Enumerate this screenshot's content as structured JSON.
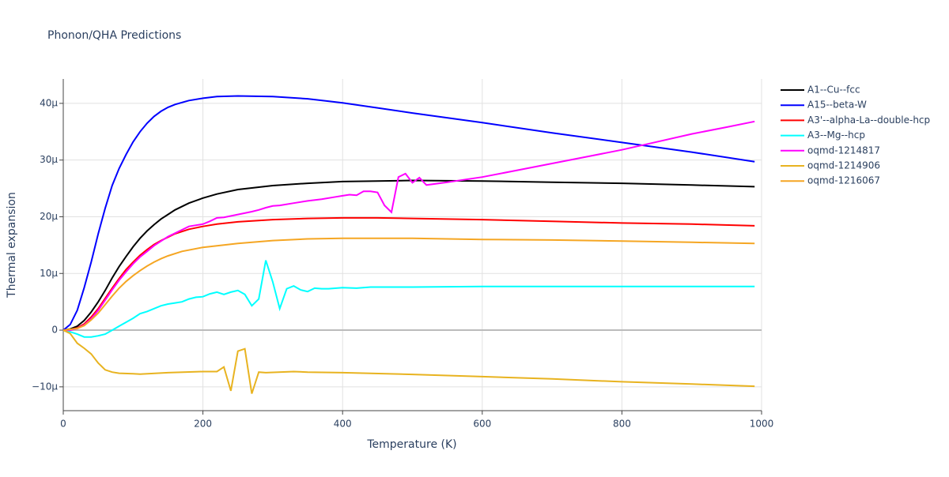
{
  "chart_data": {
    "type": "line",
    "title": "Phonon/QHA Predictions",
    "x_label": "Temperature (K)",
    "y_label": "Thermal expansion",
    "xlim": [
      0,
      1000
    ],
    "xticks": [
      0,
      200,
      400,
      600,
      800,
      1000
    ],
    "ylim": [
      -14.2,
      44.3
    ],
    "yticks": [
      {
        "value": -10,
        "label": "−10μ"
      },
      0,
      {
        "value": 10,
        "label": "10μ"
      },
      {
        "value": 20,
        "label": "20μ"
      },
      {
        "value": 30,
        "label": "30μ"
      },
      {
        "value": 40,
        "label": "40μ"
      }
    ],
    "grid": true,
    "legend": "right",
    "series": [
      {
        "name": "A1--Cu--fcc",
        "color": "#000000",
        "x": [
          0,
          10,
          20,
          30,
          40,
          50,
          60,
          70,
          80,
          90,
          100,
          110,
          120,
          130,
          140,
          150,
          160,
          180,
          200,
          220,
          250,
          300,
          350,
          400,
          450,
          500,
          600,
          700,
          800,
          900,
          990
        ],
        "values": [
          0,
          0.2,
          0.7,
          1.7,
          3.2,
          5,
          7,
          9.2,
          11.2,
          13,
          14.7,
          16.2,
          17.5,
          18.6,
          19.6,
          20.4,
          21.2,
          22.4,
          23.3,
          24,
          24.8,
          25.5,
          25.9,
          26.2,
          26.3,
          26.4,
          26.3,
          26.1,
          25.9,
          25.6,
          25.3
        ]
      },
      {
        "name": "A15--beta-W",
        "color": "#0000ff",
        "x": [
          0,
          10,
          20,
          30,
          40,
          50,
          60,
          70,
          80,
          90,
          100,
          110,
          120,
          130,
          140,
          150,
          160,
          180,
          200,
          220,
          250,
          300,
          350,
          400,
          450,
          500,
          600,
          700,
          800,
          900,
          990
        ],
        "values": [
          0,
          1,
          3.5,
          7.5,
          12,
          17,
          21.5,
          25.5,
          28.5,
          31,
          33.2,
          35,
          36.5,
          37.7,
          38.6,
          39.3,
          39.8,
          40.5,
          40.9,
          41.2,
          41.3,
          41.2,
          40.8,
          40.1,
          39.2,
          38.3,
          36.6,
          34.8,
          33.1,
          31.4,
          29.7
        ]
      },
      {
        "name": "A3'--alpha-La--double-hcp",
        "color": "#ff0000",
        "x": [
          0,
          10,
          20,
          30,
          40,
          50,
          60,
          70,
          80,
          90,
          100,
          110,
          120,
          130,
          140,
          150,
          160,
          180,
          200,
          220,
          250,
          300,
          350,
          400,
          450,
          500,
          600,
          700,
          800,
          900,
          990
        ],
        "values": [
          0,
          0.1,
          0.4,
          1.1,
          2.3,
          3.8,
          5.6,
          7.4,
          9.1,
          10.7,
          12,
          13.2,
          14.2,
          15.1,
          15.8,
          16.4,
          17,
          17.8,
          18.3,
          18.7,
          19.1,
          19.5,
          19.7,
          19.8,
          19.8,
          19.7,
          19.5,
          19.2,
          18.9,
          18.7,
          18.4
        ]
      },
      {
        "name": "A3--Mg--hcp",
        "color": "#00ffff",
        "x": [
          0,
          10,
          20,
          30,
          40,
          50,
          60,
          70,
          80,
          90,
          100,
          110,
          120,
          130,
          140,
          150,
          160,
          170,
          180,
          190,
          200,
          210,
          220,
          230,
          240,
          250,
          260,
          270,
          280,
          290,
          300,
          310,
          320,
          330,
          340,
          350,
          360,
          370,
          380,
          400,
          420,
          440,
          500,
          600,
          700,
          800,
          900,
          990
        ],
        "values": [
          0,
          -0.3,
          -0.7,
          -1.2,
          -1.2,
          -1,
          -0.7,
          0,
          0.7,
          1.4,
          2.1,
          2.9,
          3.3,
          3.8,
          4.3,
          4.6,
          4.8,
          5,
          5.5,
          5.8,
          5.9,
          6.4,
          6.7,
          6.3,
          6.7,
          7,
          6.3,
          4.3,
          5.5,
          12.3,
          8.5,
          3.8,
          7.3,
          7.8,
          7.1,
          6.8,
          7.4,
          7.3,
          7.3,
          7.5,
          7.4,
          7.6,
          7.6,
          7.7,
          7.7,
          7.7,
          7.7,
          7.7
        ]
      },
      {
        "name": "oqmd-1214817",
        "color": "#ff00ff",
        "x": [
          0,
          10,
          20,
          30,
          40,
          50,
          60,
          70,
          80,
          90,
          100,
          110,
          120,
          130,
          140,
          150,
          160,
          170,
          180,
          190,
          200,
          210,
          220,
          230,
          250,
          270,
          280,
          290,
          300,
          310,
          330,
          350,
          370,
          390,
          400,
          410,
          420,
          430,
          440,
          450,
          460,
          470,
          480,
          490,
          500,
          510,
          520,
          550,
          600,
          650,
          700,
          750,
          800,
          850,
          900,
          950,
          990
        ],
        "values": [
          0,
          0,
          0.3,
          0.9,
          2,
          3.5,
          5.3,
          7.1,
          8.8,
          10.3,
          11.7,
          12.9,
          13.9,
          14.9,
          15.7,
          16.5,
          17.1,
          17.7,
          18.3,
          18.5,
          18.7,
          19.2,
          19.8,
          19.9,
          20.4,
          20.9,
          21.2,
          21.6,
          21.9,
          22,
          22.4,
          22.8,
          23.1,
          23.5,
          23.7,
          23.9,
          23.8,
          24.5,
          24.5,
          24.3,
          22,
          20.8,
          27,
          27.6,
          26,
          26.9,
          25.6,
          26.1,
          27,
          28.2,
          29.4,
          30.6,
          31.8,
          33.2,
          34.6,
          35.8,
          36.8
        ]
      },
      {
        "name": "oqmd-1214906",
        "color": "#e8b320",
        "x": [
          0,
          10,
          20,
          30,
          40,
          50,
          60,
          70,
          80,
          100,
          110,
          150,
          200,
          220,
          230,
          240,
          250,
          260,
          270,
          280,
          290,
          330,
          350,
          400,
          500,
          600,
          700,
          800,
          900,
          990
        ],
        "values": [
          0,
          -0.6,
          -2.3,
          -3.2,
          -4.2,
          -5.8,
          -7,
          -7.4,
          -7.6,
          -7.7,
          -7.75,
          -7.5,
          -7.3,
          -7.3,
          -6.5,
          -10.7,
          -3.7,
          -3.3,
          -11.2,
          -7.4,
          -7.5,
          -7.3,
          -7.4,
          -7.5,
          -7.8,
          -8.2,
          -8.6,
          -9.1,
          -9.5,
          -9.9
        ]
      },
      {
        "name": "oqmd-1216067",
        "color": "#f5a623",
        "x": [
          0,
          20,
          30,
          40,
          50,
          60,
          70,
          80,
          90,
          100,
          110,
          120,
          130,
          140,
          150,
          170,
          200,
          250,
          300,
          350,
          400,
          450,
          500,
          600,
          700,
          800,
          900,
          990
        ],
        "values": [
          0,
          0.3,
          0.8,
          1.8,
          3,
          4.5,
          6,
          7.4,
          8.6,
          9.6,
          10.5,
          11.3,
          12,
          12.6,
          13.1,
          13.9,
          14.6,
          15.3,
          15.8,
          16.1,
          16.2,
          16.2,
          16.2,
          16,
          15.9,
          15.7,
          15.5,
          15.3
        ]
      }
    ]
  }
}
